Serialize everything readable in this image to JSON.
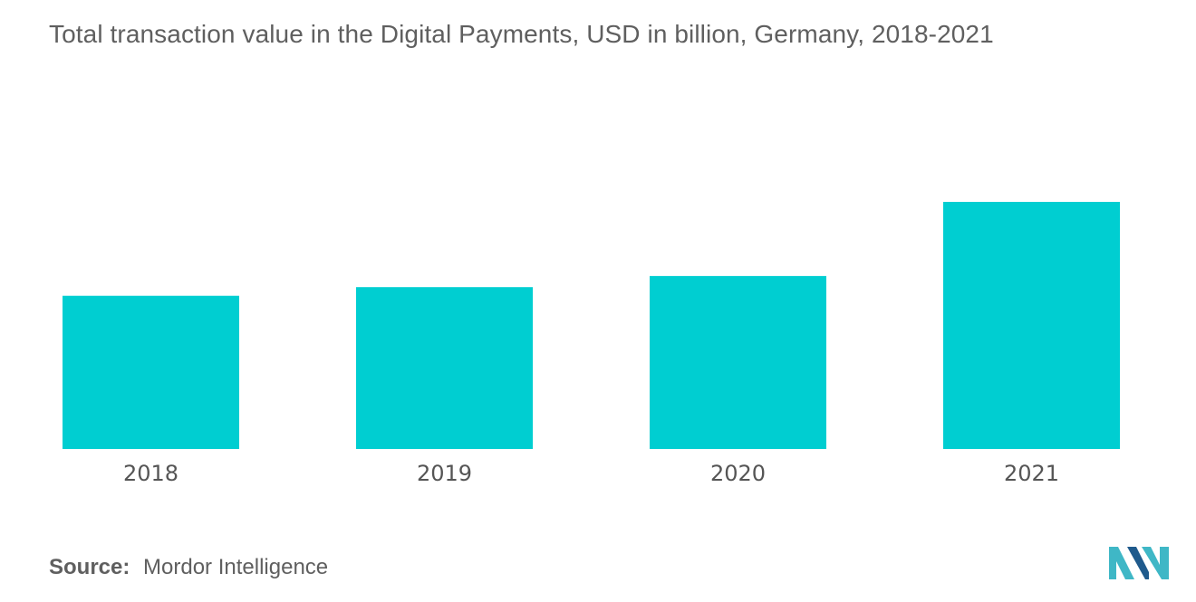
{
  "chart_data": {
    "type": "bar",
    "title": "Total transaction value in the Digital Payments, USD in billion, Germany, 2018-2021",
    "categories": [
      "2018",
      "2019",
      "2020",
      "2021"
    ],
    "values": [
      62,
      65.5,
      70,
      100
    ],
    "xlabel": "",
    "ylabel": "",
    "ylim": [
      0,
      100
    ],
    "grid": false,
    "legend": "none",
    "bar_color": "#00ced1"
  },
  "footer": {
    "source_label": "Source:",
    "source_value": "Mordor Intelligence"
  },
  "logo": {
    "icon": "mordor-intelligence-logo",
    "colors": [
      "#3fb7c6",
      "#1f5a8c"
    ]
  }
}
